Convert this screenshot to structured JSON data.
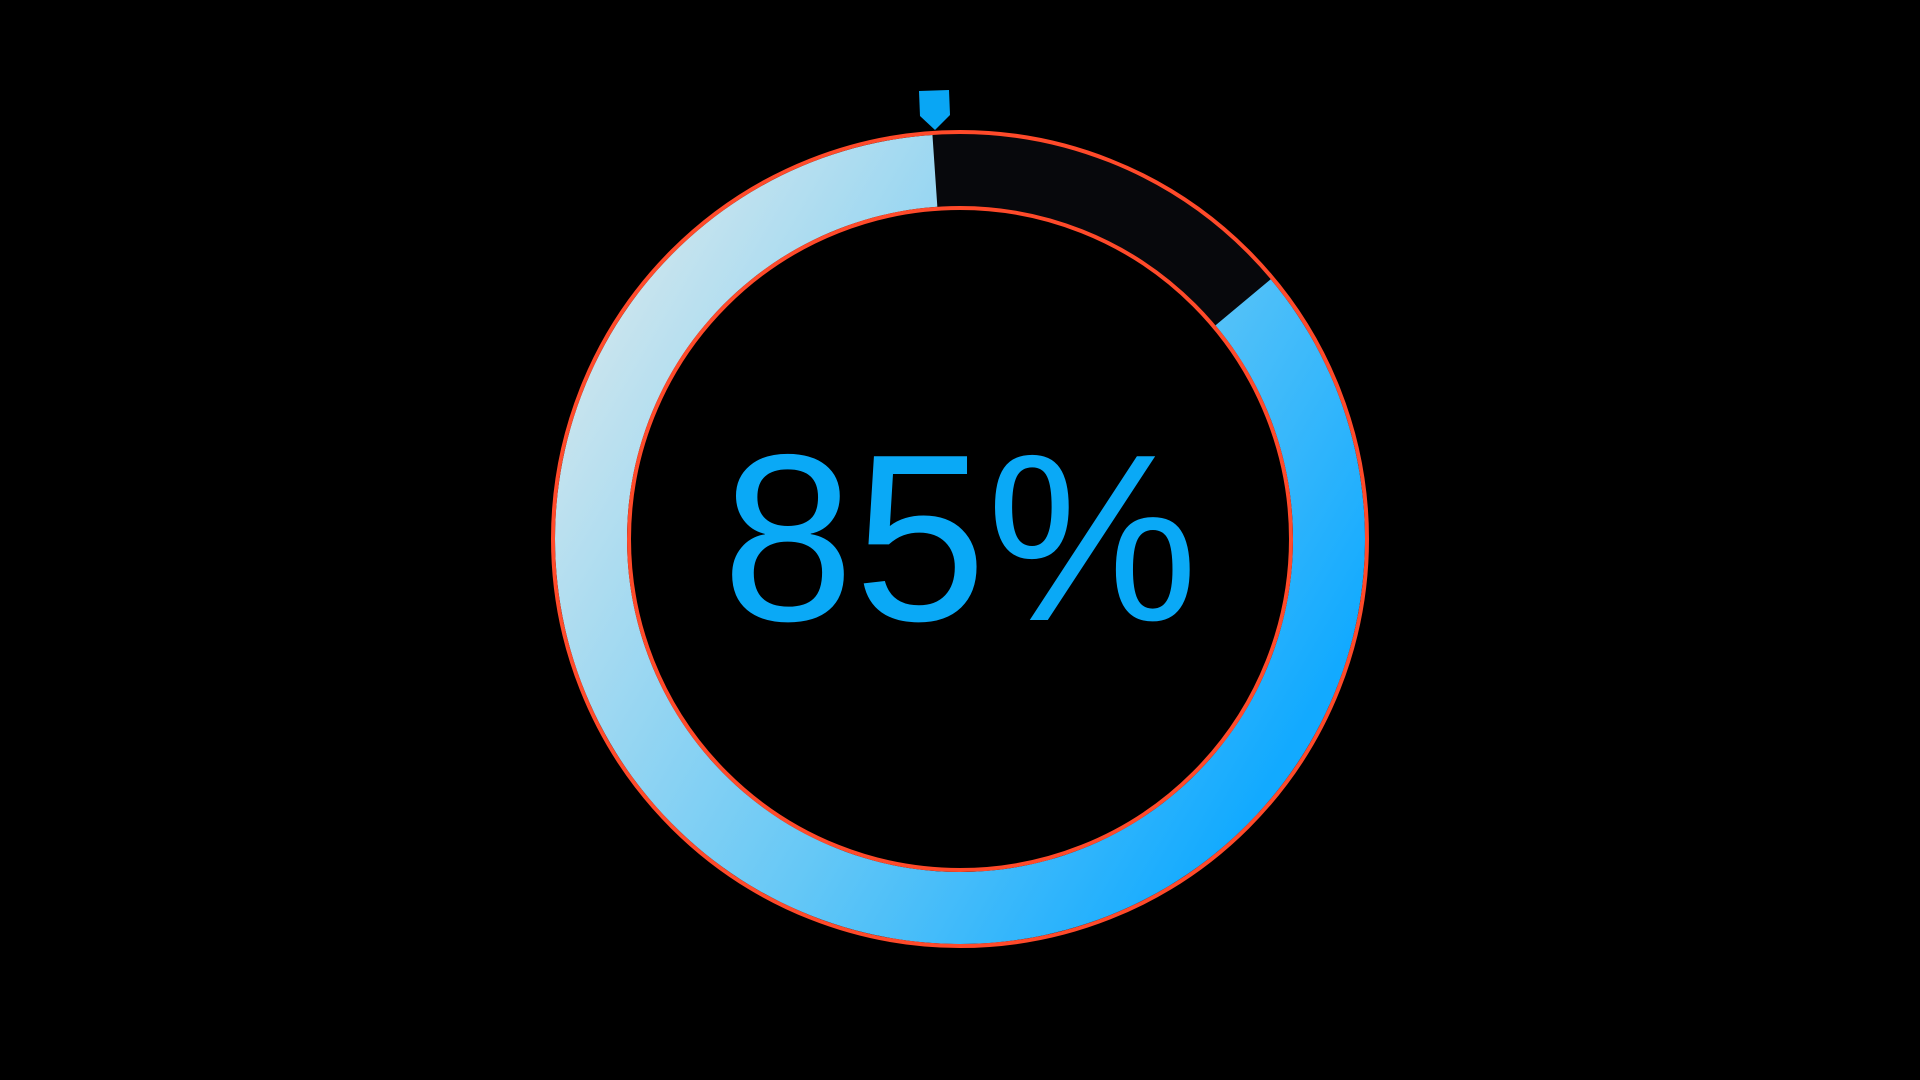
{
  "progress": {
    "label": "85%",
    "value_percent": 85,
    "colors": {
      "background": "#000000",
      "text": "#0aa9f6",
      "fill_start": "#c8e4ee",
      "fill_mid": "#66c8f6",
      "fill_end": "#12aaff",
      "track": "#07080c",
      "outline": "#ff4a2a",
      "marker": "#09a6f4"
    }
  }
}
